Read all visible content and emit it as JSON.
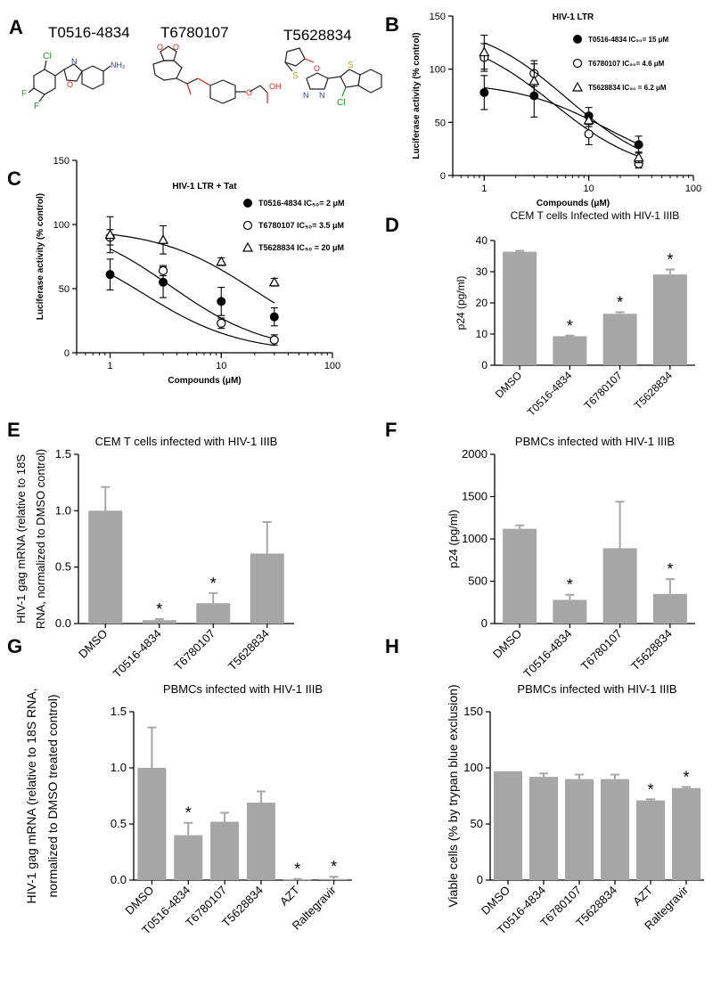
{
  "panel_a": {
    "letter": "A",
    "compounds": [
      {
        "id": "T0516-4834",
        "name_label": "T0516-4834"
      },
      {
        "id": "T6780107",
        "name_label": "T6780107"
      },
      {
        "id": "T5628834",
        "name_label": "T5628834"
      }
    ],
    "atoms": {
      "cl": "Cl",
      "f": "F",
      "n": "N",
      "o": "O",
      "s": "S",
      "nh2": "NH₂",
      "oh": "OH"
    }
  },
  "colors": {
    "bar": "#a6a6a6",
    "axis": "#000000",
    "struct_red": "#e0201b",
    "struct_blue": "#1e3ecf",
    "struct_green": "#1a9a1a",
    "struct_yellow": "#c9a400"
  },
  "chart_data": [
    {
      "id": "B",
      "letter": "B",
      "type": "scatter",
      "title": "HIV-1 LTR",
      "xlabel": "Compounds (μM)",
      "ylabel": "Luciferase activity (% control)",
      "xscale": "log",
      "xlim": [
        0.5,
        100
      ],
      "ylim": [
        0,
        150
      ],
      "xticks": [
        1,
        10,
        100
      ],
      "xtick_labels": [
        "1",
        "10",
        "100"
      ],
      "yticks": [
        0,
        50,
        100,
        150
      ],
      "ytick_labels": [
        "0",
        "50",
        "100",
        "150"
      ],
      "legend_position": "top-right",
      "series": [
        {
          "name": "T0516-4834",
          "ic50_label": "IC₅₀= 15 μM",
          "marker": "filled-circle",
          "x": [
            1,
            3,
            10,
            30
          ],
          "y": [
            78,
            75,
            56,
            29
          ],
          "err": [
            16,
            20,
            8,
            8
          ],
          "fit_ic50": 15,
          "fit_top": 88
        },
        {
          "name": "T6780107",
          "ic50_label": "IC₅₀= 4.6 μM",
          "marker": "open-circle",
          "x": [
            1,
            3,
            10,
            30
          ],
          "y": [
            111,
            96,
            39,
            11
          ],
          "err": [
            13,
            12,
            10,
            4
          ],
          "fit_ic50": 4.6,
          "fit_top": 135
        },
        {
          "name": "T5628834",
          "ic50_label": "IC₅₀ = 6.2 μM",
          "marker": "open-triangle",
          "x": [
            1,
            3,
            10,
            30
          ],
          "y": [
            116,
            89,
            52,
            17
          ],
          "err": [
            16,
            16,
            6,
            5
          ],
          "fit_ic50": 6.2,
          "fit_top": 145
        }
      ]
    },
    {
      "id": "C",
      "letter": "C",
      "type": "scatter",
      "title": "HIV-1 LTR + Tat",
      "xlabel": "Compounds (μM)",
      "ylabel": "Luciferase activity (% control)",
      "xscale": "log",
      "xlim": [
        0.5,
        100
      ],
      "ylim": [
        0,
        150
      ],
      "xticks": [
        1,
        10,
        100
      ],
      "xtick_labels": [
        "1",
        "10",
        "100"
      ],
      "yticks": [
        0,
        50,
        100,
        150
      ],
      "ytick_labels": [
        "0",
        "50",
        "100",
        "150"
      ],
      "legend_position": "top-right",
      "series": [
        {
          "name": "T0516-4834",
          "ic50_label": "IC₅₀= 2 μM",
          "marker": "filled-circle",
          "x": [
            1,
            3,
            10,
            30
          ],
          "y": [
            61,
            55,
            40,
            28
          ],
          "err": [
            12,
            12,
            11,
            7
          ],
          "fit_ic50": 2,
          "fit_top": 92
        },
        {
          "name": "T6780107",
          "ic50_label": "IC₅₀= 3.5 μM",
          "marker": "open-circle",
          "x": [
            1,
            3,
            10,
            30
          ],
          "y": [
            90,
            64,
            23,
            10
          ],
          "err": [
            6,
            4,
            4,
            4
          ],
          "fit_ic50": 3.5,
          "fit_top": 104
        },
        {
          "name": "T5628834",
          "ic50_label": "IC₅₀ = 20 μM",
          "marker": "open-triangle",
          "x": [
            1,
            3,
            10,
            30
          ],
          "y": [
            92,
            88,
            71,
            55
          ],
          "err": [
            14,
            11,
            3,
            3
          ],
          "fit_ic50": 20,
          "fit_top": 97
        }
      ]
    },
    {
      "id": "D",
      "letter": "D",
      "type": "bar",
      "title": "CEM  T cells Infected with HIV-1 IIIB",
      "xlabel": "",
      "ylabel": "p24 (pg/ml)",
      "ylim": [
        0,
        40
      ],
      "yticks": [
        0,
        10,
        20,
        30,
        40
      ],
      "ytick_labels": [
        "0",
        "10",
        "20",
        "30",
        "40"
      ],
      "categories": [
        "DMSO",
        "T0516-4834",
        "T6780107",
        "T5628834"
      ],
      "values": [
        36.4,
        9.3,
        16.5,
        29.1
      ],
      "err": [
        0.3,
        0.2,
        0.5,
        1.6
      ],
      "significant": [
        false,
        true,
        true,
        true
      ],
      "sig_mark": "*"
    },
    {
      "id": "E",
      "letter": "E",
      "type": "bar",
      "title": "CEM  T cells infected with HIV-1 IIIB",
      "xlabel": "",
      "ylabel_lines": [
        "HIV-1  gag mRNA (relative to 18S",
        "RNA, normalized to DMSO control)"
      ],
      "ylim": [
        0,
        1.5
      ],
      "yticks": [
        0,
        0.5,
        1,
        1.5
      ],
      "ytick_labels": [
        "0.0",
        "0.5",
        "1.0",
        "1.5"
      ],
      "categories": [
        "DMSO",
        "T0516-4834",
        "T6780107",
        "T5628834"
      ],
      "values": [
        1.0,
        0.03,
        0.18,
        0.62
      ],
      "err": [
        0.21,
        0.01,
        0.09,
        0.28
      ],
      "significant": [
        false,
        true,
        true,
        false
      ],
      "sig_mark": "*"
    },
    {
      "id": "F",
      "letter": "F",
      "type": "bar",
      "title": "PBMCs infected with HIV-1 IIIB",
      "xlabel": "",
      "ylabel": "p24 (pg/ml)",
      "ylim": [
        0,
        2000
      ],
      "yticks": [
        0,
        500,
        1000,
        1500,
        2000
      ],
      "ytick_labels": [
        "0",
        "500",
        "1000",
        "1500",
        "2000"
      ],
      "categories": [
        "DMSO",
        "T0516-4834",
        "T6780107",
        "T5628834"
      ],
      "values": [
        1120,
        280,
        890,
        350
      ],
      "err": [
        40,
        60,
        550,
        175
      ],
      "significant": [
        false,
        true,
        false,
        true
      ],
      "sig_mark": "*"
    },
    {
      "id": "G",
      "letter": "G",
      "type": "bar",
      "title": "PBMCs infected with HIV-1 IIIB",
      "xlabel": "",
      "ylabel_lines": [
        "HIV-1  gag mRNA (relative to 18S RNA,",
        "normalized to DMSO treated control)"
      ],
      "ylim": [
        0,
        1.5
      ],
      "yticks": [
        0,
        0.5,
        1,
        1.5
      ],
      "ytick_labels": [
        "0.0",
        "0.5",
        "1.0",
        "1.5"
      ],
      "categories": [
        "DMSO",
        "T0516-4834",
        "T6780107",
        "T5628834",
        "AZT",
        "Raltegravir"
      ],
      "values": [
        1.0,
        0.4,
        0.52,
        0.69,
        0.005,
        0.01
      ],
      "err": [
        0.36,
        0.11,
        0.08,
        0.1,
        0.005,
        0.02
      ],
      "significant": [
        false,
        true,
        false,
        false,
        true,
        true
      ],
      "sig_mark": "*"
    },
    {
      "id": "H",
      "letter": "H",
      "type": "bar",
      "title": "PBMCs infected with HIV-1 IIIB",
      "xlabel": "",
      "ylabel": "Viable cells (% by trypan blue exclusion)",
      "ylim": [
        0,
        150
      ],
      "yticks": [
        0,
        50,
        100,
        150
      ],
      "ytick_labels": [
        "0",
        "50",
        "100",
        "150"
      ],
      "categories": [
        "DMSO",
        "T0516-4834",
        "T6780107",
        "T5628834",
        "AZT",
        "Raltegravir"
      ],
      "values": [
        97,
        92,
        90,
        90,
        71,
        82
      ],
      "err": [
        0,
        3,
        4,
        4,
        1,
        1
      ],
      "significant": [
        false,
        false,
        false,
        false,
        true,
        true
      ],
      "sig_mark": "*"
    }
  ]
}
